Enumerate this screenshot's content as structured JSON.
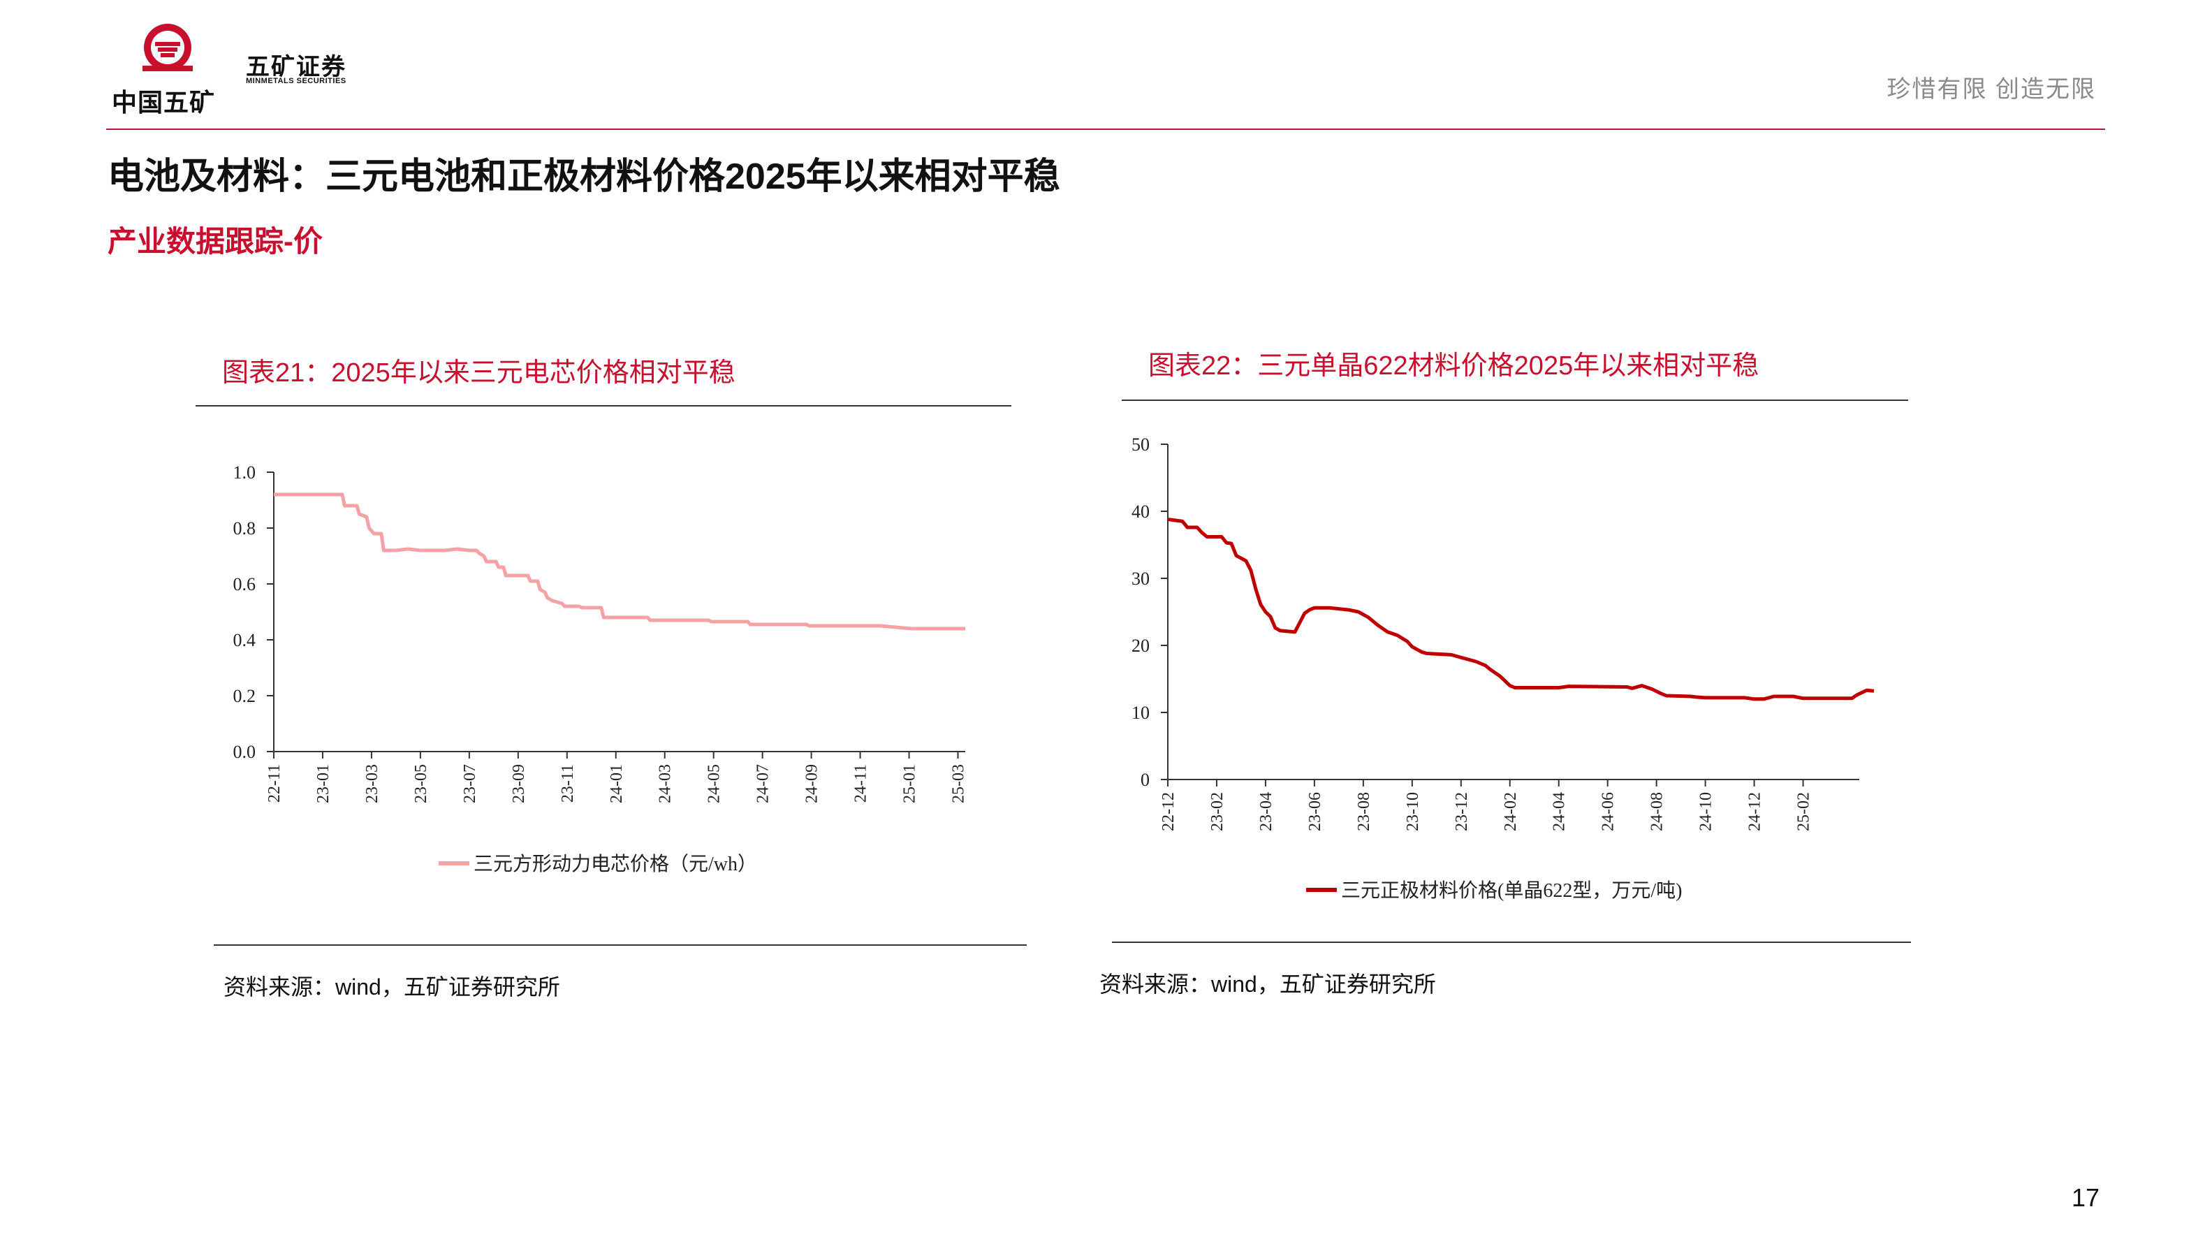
{
  "header": {
    "logo_text": "中国五矿",
    "brand_cn": "五矿证券",
    "brand_en": "MINMETALS SECURITIES",
    "slogan": "珍惜有限  创造无限"
  },
  "page": {
    "title": "电池及材料：三元电池和正极材料价格2025年以来相对平稳",
    "subtitle": "产业数据跟踪-价",
    "number": "17"
  },
  "colors": {
    "accent": "#c8102e",
    "series1": "#f4a2a5",
    "series2": "#c00000"
  },
  "chart_data": [
    {
      "type": "line",
      "title": "图表21：2025年以来三元电芯价格相对平稳",
      "source": "资料来源：wind，五矿证券研究所",
      "xlabel": "",
      "ylabel": "",
      "ylim": [
        0,
        1.0
      ],
      "yticks": [
        "0.0",
        "0.2",
        "0.4",
        "0.6",
        "0.8",
        "1.0"
      ],
      "xticks": [
        "22-11",
        "23-01",
        "23-03",
        "23-05",
        "23-07",
        "23-09",
        "23-11",
        "24-01",
        "24-03",
        "24-05",
        "24-07",
        "24-09",
        "24-11",
        "25-01",
        "25-03"
      ],
      "xrange": [
        0,
        28.3
      ],
      "legend_position": "bottom",
      "series": [
        {
          "name": "三元方形动力电芯价格（元/wh）",
          "color": "#f4a2a5",
          "points": [
            [
              0,
              0.92
            ],
            [
              2.8,
              0.92
            ],
            [
              2.9,
              0.88
            ],
            [
              3.4,
              0.88
            ],
            [
              3.5,
              0.85
            ],
            [
              3.8,
              0.84
            ],
            [
              3.9,
              0.8
            ],
            [
              4.1,
              0.78
            ],
            [
              4.4,
              0.78
            ],
            [
              4.5,
              0.72
            ],
            [
              5,
              0.72
            ],
            [
              5.5,
              0.725
            ],
            [
              6,
              0.72
            ],
            [
              7,
              0.72
            ],
            [
              7.5,
              0.725
            ],
            [
              8,
              0.72
            ],
            [
              8.3,
              0.72
            ],
            [
              8.4,
              0.71
            ],
            [
              8.6,
              0.7
            ],
            [
              8.7,
              0.68
            ],
            [
              9.1,
              0.68
            ],
            [
              9.2,
              0.66
            ],
            [
              9.4,
              0.66
            ],
            [
              9.5,
              0.63
            ],
            [
              10.4,
              0.63
            ],
            [
              10.5,
              0.61
            ],
            [
              10.8,
              0.61
            ],
            [
              10.9,
              0.58
            ],
            [
              11.1,
              0.57
            ],
            [
              11.2,
              0.55
            ],
            [
              11.4,
              0.54
            ],
            [
              11.8,
              0.53
            ],
            [
              11.9,
              0.52
            ],
            [
              12,
              0.52
            ],
            [
              12.5,
              0.52
            ],
            [
              12.6,
              0.515
            ],
            [
              13.4,
              0.515
            ],
            [
              13.5,
              0.48
            ],
            [
              15.3,
              0.48
            ],
            [
              15.4,
              0.47
            ],
            [
              17.8,
              0.47
            ],
            [
              17.9,
              0.465
            ],
            [
              19.4,
              0.465
            ],
            [
              19.5,
              0.455
            ],
            [
              21.8,
              0.455
            ],
            [
              21.9,
              0.45
            ],
            [
              24.8,
              0.45
            ],
            [
              26.1,
              0.44
            ],
            [
              28.3,
              0.44
            ]
          ]
        }
      ]
    },
    {
      "type": "line",
      "title": "图表22：三元单晶622材料价格2025年以来相对平稳",
      "source": "资料来源：wind，五矿证券研究所",
      "xlabel": "",
      "ylabel": "",
      "ylim": [
        0,
        50
      ],
      "yticks": [
        "0",
        "10",
        "20",
        "30",
        "40",
        "50"
      ],
      "xticks": [
        "22-12",
        "23-02",
        "23-04",
        "23-06",
        "23-08",
        "23-10",
        "23-12",
        "24-02",
        "24-04",
        "24-06",
        "24-08",
        "24-10",
        "24-12",
        "25-02"
      ],
      "xrange": [
        0,
        28.3
      ],
      "legend_position": "bottom",
      "series": [
        {
          "name": "三元正极材料价格(单晶622型，万元/吨)",
          "color": "#c00000",
          "points": [
            [
              0,
              38.8
            ],
            [
              0.6,
              38.5
            ],
            [
              0.8,
              37.6
            ],
            [
              1.2,
              37.6
            ],
            [
              1.4,
              36.8
            ],
            [
              1.6,
              36.2
            ],
            [
              2.2,
              36.2
            ],
            [
              2.4,
              35.3
            ],
            [
              2.6,
              35.2
            ],
            [
              2.8,
              33.4
            ],
            [
              3.2,
              32.6
            ],
            [
              3.4,
              31.2
            ],
            [
              3.6,
              28.4
            ],
            [
              3.8,
              26.1
            ],
            [
              4.0,
              25.0
            ],
            [
              4.2,
              24.3
            ],
            [
              4.4,
              22.6
            ],
            [
              4.6,
              22.2
            ],
            [
              5.2,
              22.0
            ],
            [
              5.6,
              24.8
            ],
            [
              5.8,
              25.3
            ],
            [
              6.0,
              25.6
            ],
            [
              6.6,
              25.6
            ],
            [
              7.4,
              25.3
            ],
            [
              7.8,
              25.0
            ],
            [
              8.2,
              24.2
            ],
            [
              8.6,
              23.0
            ],
            [
              9.0,
              22.0
            ],
            [
              9.4,
              21.5
            ],
            [
              9.8,
              20.6
            ],
            [
              10.0,
              19.8
            ],
            [
              10.4,
              19.0
            ],
            [
              10.6,
              18.8
            ],
            [
              11.6,
              18.6
            ],
            [
              12.0,
              18.2
            ],
            [
              12.6,
              17.6
            ],
            [
              13.0,
              17.0
            ],
            [
              13.2,
              16.4
            ],
            [
              13.6,
              15.4
            ],
            [
              14.0,
              14.0
            ],
            [
              14.2,
              13.7
            ],
            [
              16.0,
              13.7
            ],
            [
              16.4,
              13.9
            ],
            [
              18.8,
              13.8
            ],
            [
              19.0,
              13.6
            ],
            [
              19.4,
              14.0
            ],
            [
              19.8,
              13.5
            ],
            [
              20.2,
              12.8
            ],
            [
              20.4,
              12.5
            ],
            [
              21.4,
              12.4
            ],
            [
              21.6,
              12.3
            ],
            [
              22.0,
              12.2
            ],
            [
              23.6,
              12.2
            ],
            [
              24.0,
              12.0
            ],
            [
              24.4,
              12.0
            ],
            [
              24.8,
              12.4
            ],
            [
              25.6,
              12.4
            ],
            [
              26.0,
              12.1
            ],
            [
              28.0,
              12.1
            ],
            [
              28.2,
              12.6
            ],
            [
              28.6,
              13.3
            ],
            [
              28.9,
              13.2
            ]
          ]
        }
      ]
    }
  ]
}
